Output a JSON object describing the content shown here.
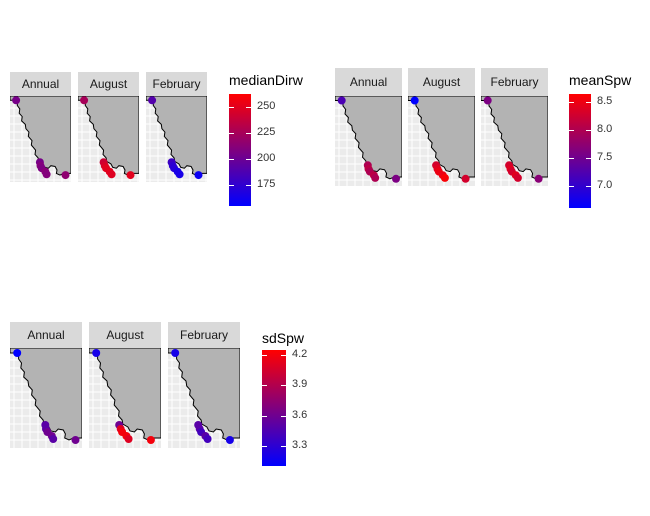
{
  "chart_data": [
    {
      "type": "scatter",
      "facets": [
        "Annual",
        "August",
        "February"
      ],
      "legend": {
        "title": "medianDirw",
        "range": [
          155,
          262
        ],
        "ticks": [
          175,
          200,
          225,
          250
        ],
        "tick_labels": [
          "175",
          "200",
          "225",
          "250"
        ],
        "colors": [
          "#0000ff",
          "#ff0000"
        ]
      },
      "points": {
        "Annual": [
          [
            0.1,
            0.05,
            205
          ],
          [
            0.49,
            0.77,
            205
          ],
          [
            0.5,
            0.81,
            210
          ],
          [
            0.52,
            0.84,
            208
          ],
          [
            0.58,
            0.88,
            212
          ],
          [
            0.6,
            0.91,
            210
          ],
          [
            0.91,
            0.92,
            215
          ]
        ],
        "August": [
          [
            0.1,
            0.05,
            225
          ],
          [
            0.42,
            0.77,
            240
          ],
          [
            0.44,
            0.81,
            245
          ],
          [
            0.46,
            0.84,
            250
          ],
          [
            0.52,
            0.88,
            250
          ],
          [
            0.55,
            0.91,
            248
          ],
          [
            0.86,
            0.92,
            250
          ]
        ],
        "February": [
          [
            0.1,
            0.05,
            190
          ],
          [
            0.42,
            0.77,
            180
          ],
          [
            0.44,
            0.81,
            175
          ],
          [
            0.46,
            0.84,
            172
          ],
          [
            0.52,
            0.88,
            165
          ],
          [
            0.55,
            0.91,
            165
          ],
          [
            0.86,
            0.92,
            160
          ]
        ]
      }
    },
    {
      "type": "scatter",
      "facets": [
        "Annual",
        "August",
        "February"
      ],
      "legend": {
        "title": "meanSpw",
        "range": [
          6.6,
          8.65
        ],
        "ticks": [
          7.0,
          7.5,
          8.0,
          8.5
        ],
        "tick_labels": [
          "7.0",
          "7.5",
          "8.0",
          "8.5"
        ],
        "colors": [
          "#0000ff",
          "#ff0000"
        ]
      },
      "points": {
        "Annual": [
          [
            0.1,
            0.05,
            7.2
          ],
          [
            0.49,
            0.77,
            8.0
          ],
          [
            0.5,
            0.81,
            8.1
          ],
          [
            0.52,
            0.84,
            8.0
          ],
          [
            0.58,
            0.88,
            8.1
          ],
          [
            0.6,
            0.91,
            8.0
          ],
          [
            0.91,
            0.92,
            7.6
          ]
        ],
        "August": [
          [
            0.1,
            0.05,
            6.6
          ],
          [
            0.42,
            0.77,
            8.3
          ],
          [
            0.44,
            0.81,
            8.4
          ],
          [
            0.46,
            0.84,
            8.5
          ],
          [
            0.52,
            0.88,
            8.5
          ],
          [
            0.55,
            0.91,
            8.6
          ],
          [
            0.86,
            0.92,
            8.3
          ]
        ],
        "February": [
          [
            0.1,
            0.05,
            7.6
          ],
          [
            0.42,
            0.77,
            8.3
          ],
          [
            0.44,
            0.81,
            8.4
          ],
          [
            0.46,
            0.84,
            8.3
          ],
          [
            0.52,
            0.88,
            8.4
          ],
          [
            0.55,
            0.91,
            8.3
          ],
          [
            0.86,
            0.92,
            7.7
          ]
        ]
      }
    },
    {
      "type": "scatter",
      "facets": [
        "Annual",
        "August",
        "February"
      ],
      "legend": {
        "title": "sdSpw",
        "range": [
          3.1,
          4.25
        ],
        "ticks": [
          3.3,
          3.6,
          3.9,
          4.2
        ],
        "tick_labels": [
          "3.3",
          "3.6",
          "3.9",
          "4.2"
        ],
        "colors": [
          "#0000ff",
          "#ff0000"
        ]
      },
      "points": {
        "Annual": [
          [
            0.1,
            0.05,
            3.1
          ],
          [
            0.49,
            0.77,
            3.5
          ],
          [
            0.5,
            0.81,
            3.5
          ],
          [
            0.52,
            0.84,
            3.6
          ],
          [
            0.58,
            0.88,
            3.6
          ],
          [
            0.6,
            0.91,
            3.5
          ],
          [
            0.91,
            0.92,
            3.6
          ]
        ],
        "August": [
          [
            0.1,
            0.05,
            3.2
          ],
          [
            0.42,
            0.77,
            3.6
          ],
          [
            0.44,
            0.81,
            4.1
          ],
          [
            0.46,
            0.84,
            4.2
          ],
          [
            0.52,
            0.88,
            4.2
          ],
          [
            0.55,
            0.91,
            4.1
          ],
          [
            0.86,
            0.92,
            4.2
          ]
        ],
        "February": [
          [
            0.1,
            0.05,
            3.2
          ],
          [
            0.42,
            0.77,
            3.5
          ],
          [
            0.44,
            0.81,
            3.5
          ],
          [
            0.46,
            0.84,
            3.4
          ],
          [
            0.52,
            0.88,
            3.5
          ],
          [
            0.55,
            0.91,
            3.4
          ],
          [
            0.86,
            0.92,
            3.2
          ]
        ]
      }
    }
  ]
}
